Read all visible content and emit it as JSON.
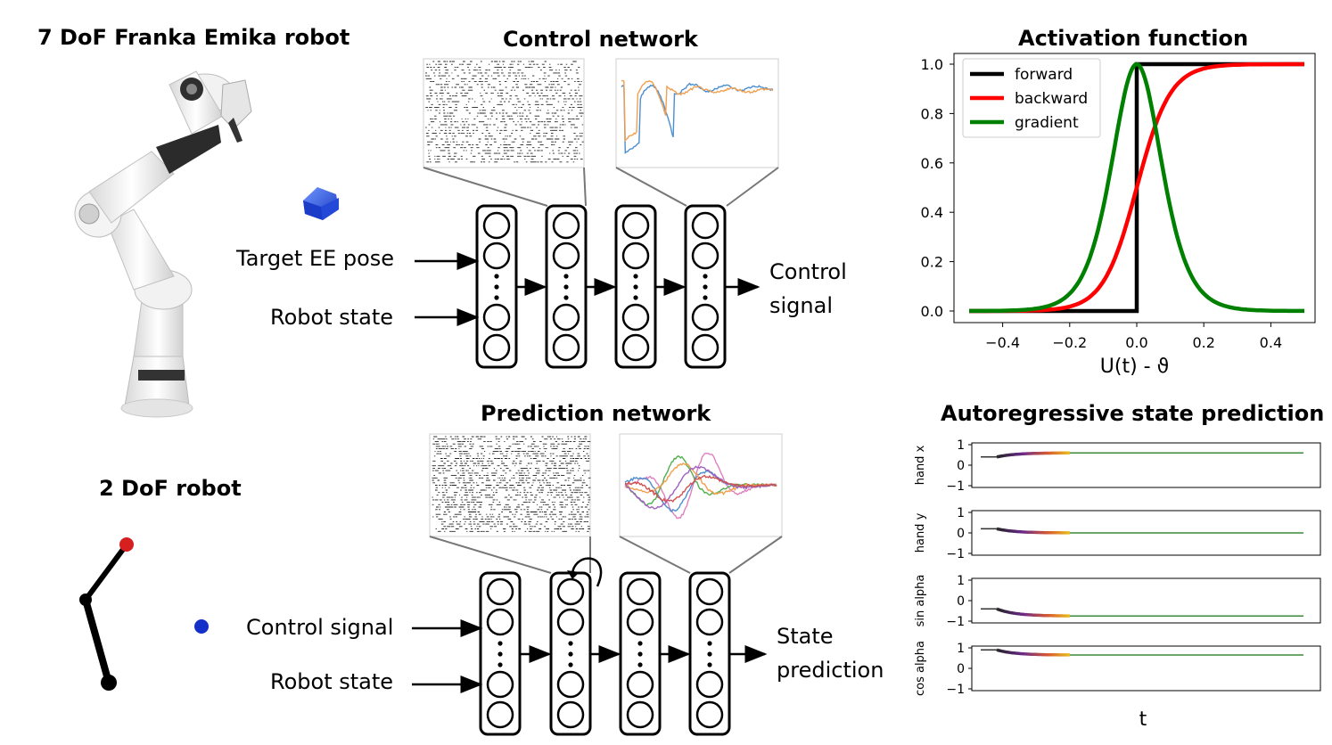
{
  "titles": {
    "franka": "7 DoF Franka Emika robot",
    "control_network": "Control network",
    "activation": "Activation function",
    "robot2dof": "2 DoF robot",
    "prediction_network": "Prediction network",
    "autoregressive": "Autoregressive state prediction"
  },
  "control": {
    "input1": "Target EE pose",
    "input2": "Robot state",
    "output_line1": "Control",
    "output_line2": "signal"
  },
  "prediction": {
    "input1": "Control signal",
    "input2": "Robot state",
    "output_line1": "State",
    "output_line2": "prediction"
  },
  "colors": {
    "forward": "#000000",
    "backward": "#ff0000",
    "gradient": "#008000",
    "target_cube": "#2f5bd8",
    "end_effector": "#d62020",
    "target_dot": "#1430c8",
    "trace_blue": "#4c8fd0",
    "trace_orange": "#f0a050"
  },
  "chart_data": [
    {
      "type": "line",
      "title": "Activation function",
      "xlabel": "U(t) - ϑ",
      "ylabel": "",
      "xlim": [
        -0.5,
        0.5
      ],
      "ylim": [
        0,
        1
      ],
      "xticks": [
        "−0.4",
        "−0.2",
        "0.0",
        "0.2",
        "0.4"
      ],
      "yticks": [
        "0.0",
        "0.2",
        "0.4",
        "0.6",
        "0.8",
        "1.0"
      ],
      "legend_position": "top-left",
      "series": [
        {
          "name": "forward",
          "x": [
            -0.5,
            0.0,
            0.0,
            0.5
          ],
          "y": [
            0,
            0,
            1,
            1
          ]
        },
        {
          "name": "backward",
          "x": [
            -0.5,
            -0.3,
            -0.2,
            -0.1,
            -0.05,
            0.0,
            0.05,
            0.1,
            0.2,
            0.3,
            0.5
          ],
          "y": [
            0.0,
            0.01,
            0.02,
            0.1,
            0.27,
            0.5,
            0.73,
            0.88,
            0.98,
            0.99,
            1.0
          ]
        },
        {
          "name": "gradient",
          "x": [
            -0.5,
            -0.3,
            -0.2,
            -0.15,
            -0.1,
            -0.05,
            0.0,
            0.05,
            0.1,
            0.15,
            0.2,
            0.3,
            0.5
          ],
          "y": [
            0.0,
            0.01,
            0.07,
            0.2,
            0.42,
            0.79,
            1.0,
            0.79,
            0.42,
            0.2,
            0.07,
            0.01,
            0.0
          ]
        }
      ]
    },
    {
      "type": "line",
      "title": "Autoregressive state prediction",
      "xlabel": "t",
      "panels": [
        {
          "ylabel": "hand x",
          "yticks": [
            "1",
            "0",
            "−1"
          ],
          "ylim": [
            -1,
            1
          ],
          "start": 0.4,
          "settle": 0.6
        },
        {
          "ylabel": "hand y",
          "yticks": [
            "1",
            "0",
            "−1"
          ],
          "ylim": [
            -1,
            1
          ],
          "start": 0.2,
          "settle": 0.0
        },
        {
          "ylabel": "sin alpha",
          "yticks": [
            "1",
            "0",
            "−1"
          ],
          "ylim": [
            -1,
            1
          ],
          "start": -0.4,
          "settle": -0.75
        },
        {
          "ylabel": "cos alpha",
          "yticks": [
            "1",
            "0",
            "−1"
          ],
          "ylim": [
            -1,
            1
          ],
          "start": 0.9,
          "settle": 0.65
        }
      ]
    }
  ]
}
